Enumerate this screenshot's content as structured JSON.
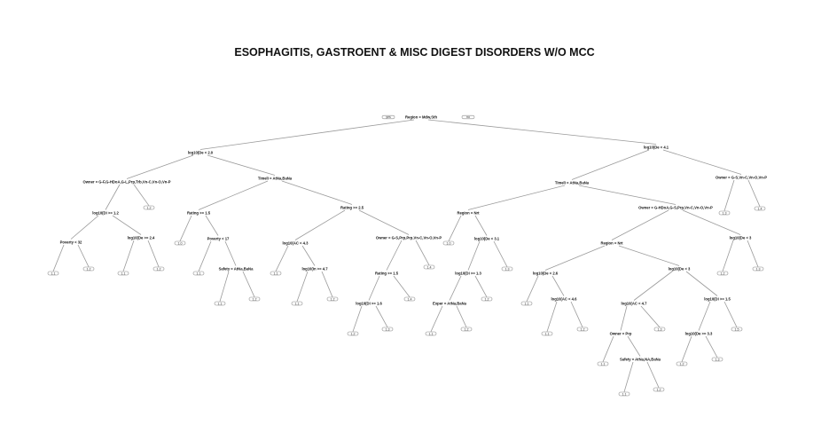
{
  "title": "ESOPHAGITIS, GASTROENT & MISC DIGEST DISORDERS W/O MCC",
  "tree": {
    "split": "Region = Mdw,Sth",
    "yes_label": "yes",
    "no_label": "no",
    "left": {
      "split": "log10(De < 2.0",
      "left": {
        "split": "Owner = G-F,G-HDoA,G-L,Prp,Trb,Vn-C,Vn-O,Vn-P",
        "left": {
          "split": "log10(Di >= 1.2",
          "left": {
            "split": "Poverty < 32",
            "left": {
              "leaf": "1.1"
            },
            "right": {
              "leaf": "1.2"
            }
          },
          "right": {
            "split": "log10(De >= 2.4",
            "left": {
              "leaf": "1.1"
            },
            "right": {
              "leaf": "1.2"
            }
          }
        },
        "right": {
          "leaf": "1.2"
        }
      },
      "right": {
        "split": "Timeli = AtNa,BaNa",
        "left": {
          "split": "Rating >= 1.5",
          "left": {
            "leaf": "1.0"
          },
          "right": {
            "split": "Poverty < 17",
            "left": {
              "leaf": "1.1"
            },
            "right": {
              "split": "Safety = AtNa,BaNa",
              "left": {
                "leaf": "1.1"
              },
              "right": {
                "leaf": "1.2"
              }
            }
          }
        },
        "right": {
          "split": "Rating >= 2.5",
          "left": {
            "split": "log10(AC < 4.3",
            "left": {
              "leaf": "1.1"
            },
            "right": {
              "split": "log10(In >= 4.7",
              "left": {
                "leaf": "1.1"
              },
              "right": {
                "leaf": "1.2"
              }
            }
          },
          "right": {
            "split": "Owner = G-S,Prp,Prp,Vn-C,Vn-O,Vn-P",
            "left": {
              "split": "Rating >= 1.5",
              "left": {
                "split": "log10(Di >= 1.6",
                "left": {
                  "leaf": "1.2"
                },
                "right": {
                  "leaf": "1.3"
                }
              },
              "right": {
                "leaf": "1.4"
              }
            },
            "right": {
              "leaf": "1.4"
            }
          }
        }
      }
    },
    "right": {
      "split": "log10(De < 4.1",
      "left": {
        "split": "Timeli = AtNa,BaNa",
        "left": {
          "split": "Region = Nrt",
          "left": {
            "leaf": "1.0"
          },
          "right": {
            "split": "log10(De < 3.1",
            "left": {
              "split": "log10(Di >= 1.3",
              "left": {
                "split": "Exper = AtNa,BaNa",
                "left": {
                  "leaf": "1.1"
                },
                "right": {
                  "leaf": "1.2"
                }
              },
              "right": {
                "leaf": "1.2"
              }
            },
            "right": {
              "leaf": "1.3"
            }
          }
        },
        "right": {
          "split": "Owner = G-HDoA,G-S,Prp,Vn-C,Vn-O,Vn-P",
          "left": {
            "split": "Region = Nrt",
            "left": {
              "split": "log10(De < 2.6",
              "left": {
                "leaf": "1.1"
              },
              "right": {
                "split": "log10(AC < 4.6",
                "left": {
                  "leaf": "1.1"
                },
                "right": {
                  "leaf": "1.2"
                }
              }
            },
            "right": {
              "split": "log10(De < 3",
              "left": {
                "split": "log10(AC < 4.7",
                "left": {
                  "split": "Owner = Prp",
                  "left": {
                    "leaf": "1.1"
                  },
                  "right": {
                    "split": "Safety = AtNa,NA,BaNa",
                    "left": {
                      "leaf": "1.1"
                    },
                    "right": {
                      "leaf": "1.2"
                    }
                  }
                },
                "right": {
                  "leaf": "1.3"
                }
              },
              "right": {
                "split": "log10(Di >= 1.5",
                "left": {
                  "split": "log10(De >= 3.3",
                  "left": {
                    "leaf": "1.2"
                  },
                  "right": {
                    "leaf": "1.3"
                  }
                },
                "right": {
                  "leaf": "1.5"
                }
              }
            }
          },
          "right": {
            "split": "log10(De < 3",
            "left": {
              "leaf": "1.2"
            },
            "right": {
              "leaf": "1.3"
            }
          }
        }
      },
      "right": {
        "split": "Owner = G-S,Vn-C,Vn-O,Vn-P",
        "left": {
          "leaf": "1.3"
        },
        "right": {
          "leaf": "1.4"
        }
      }
    }
  }
}
